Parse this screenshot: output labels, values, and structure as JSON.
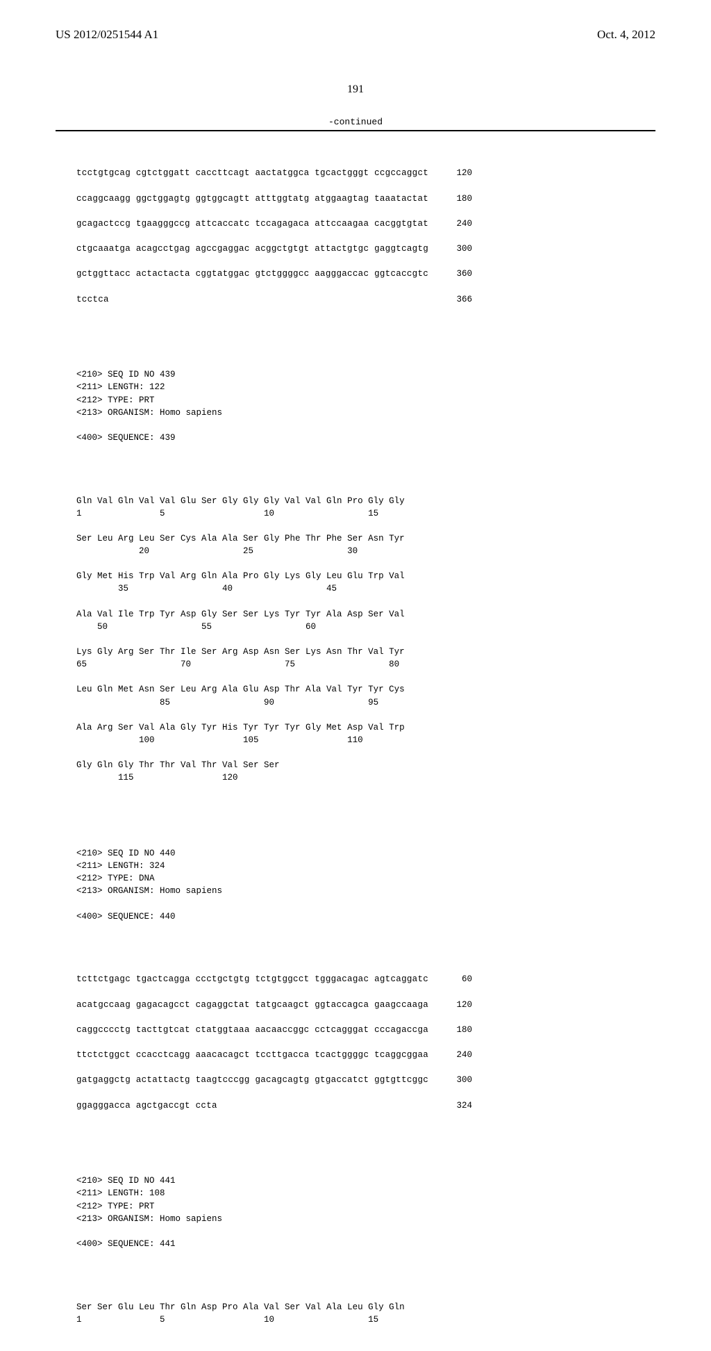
{
  "header": {
    "pub_number": "US 2012/0251544 A1",
    "pub_date": "Oct. 4, 2012"
  },
  "page_number": "191",
  "continued_label": "-continued",
  "seq438_dna": {
    "rows": [
      {
        "seq": "tcctgtgcag cgtctggatt caccttcagt aactatggca tgcactgggt ccgccaggct",
        "pos": "120"
      },
      {
        "seq": "ccaggcaagg ggctggagtg ggtggcagtt atttggtatg atggaagtag taaatactat",
        "pos": "180"
      },
      {
        "seq": "gcagactccg tgaagggccg attcaccatc tccagagaca attccaagaa cacggtgtat",
        "pos": "240"
      },
      {
        "seq": "ctgcaaatga acagcctgag agccgaggac acggctgtgt attactgtgc gaggtcagtg",
        "pos": "300"
      },
      {
        "seq": "gctggttacc actactacta cggtatggac gtctggggcc aagggaccac ggtcaccgtc",
        "pos": "360"
      },
      {
        "seq": "tcctca",
        "pos": "366"
      }
    ]
  },
  "seq439_header": [
    "<210> SEQ ID NO 439",
    "<211> LENGTH: 122",
    "<212> TYPE: PRT",
    "<213> ORGANISM: Homo sapiens",
    "",
    "<400> SEQUENCE: 439"
  ],
  "seq439_prot": [
    "Gln Val Gln Val Val Glu Ser Gly Gly Gly Val Val Gln Pro Gly Gly",
    "1               5                   10                  15",
    "",
    "Ser Leu Arg Leu Ser Cys Ala Ala Ser Gly Phe Thr Phe Ser Asn Tyr",
    "            20                  25                  30",
    "",
    "Gly Met His Trp Val Arg Gln Ala Pro Gly Lys Gly Leu Glu Trp Val",
    "        35                  40                  45",
    "",
    "Ala Val Ile Trp Tyr Asp Gly Ser Ser Lys Tyr Tyr Ala Asp Ser Val",
    "    50                  55                  60",
    "",
    "Lys Gly Arg Ser Thr Ile Ser Arg Asp Asn Ser Lys Asn Thr Val Tyr",
    "65                  70                  75                  80",
    "",
    "Leu Gln Met Asn Ser Leu Arg Ala Glu Asp Thr Ala Val Tyr Tyr Cys",
    "                85                  90                  95",
    "",
    "Ala Arg Ser Val Ala Gly Tyr His Tyr Tyr Tyr Gly Met Asp Val Trp",
    "            100                 105                 110",
    "",
    "Gly Gln Gly Thr Thr Val Thr Val Ser Ser",
    "        115                 120"
  ],
  "seq440_header": [
    "<210> SEQ ID NO 440",
    "<211> LENGTH: 324",
    "<212> TYPE: DNA",
    "<213> ORGANISM: Homo sapiens",
    "",
    "<400> SEQUENCE: 440"
  ],
  "seq440_dna": {
    "rows": [
      {
        "seq": "tcttctgagc tgactcagga ccctgctgtg tctgtggcct tgggacagac agtcaggatc",
        "pos": "60"
      },
      {
        "seq": "acatgccaag gagacagcct cagaggctat tatgcaagct ggtaccagca gaagccaaga",
        "pos": "120"
      },
      {
        "seq": "caggcccctg tacttgtcat ctatggtaaa aacaaccggc cctcagggat cccagaccga",
        "pos": "180"
      },
      {
        "seq": "ttctctggct ccacctcagg aaacacagct tccttgacca tcactggggc tcaggcggaa",
        "pos": "240"
      },
      {
        "seq": "gatgaggctg actattactg taagtcccgg gacagcagtg gtgaccatct ggtgttcggc",
        "pos": "300"
      },
      {
        "seq": "ggagggacca agctgaccgt ccta",
        "pos": "324"
      }
    ]
  },
  "seq441_header": [
    "<210> SEQ ID NO 441",
    "<211> LENGTH: 108",
    "<212> TYPE: PRT",
    "<213> ORGANISM: Homo sapiens",
    "",
    "<400> SEQUENCE: 441"
  ],
  "seq441_prot": [
    "Ser Ser Glu Leu Thr Gln Asp Pro Ala Val Ser Val Ala Leu Gly Gln",
    "1               5                   10                  15"
  ]
}
